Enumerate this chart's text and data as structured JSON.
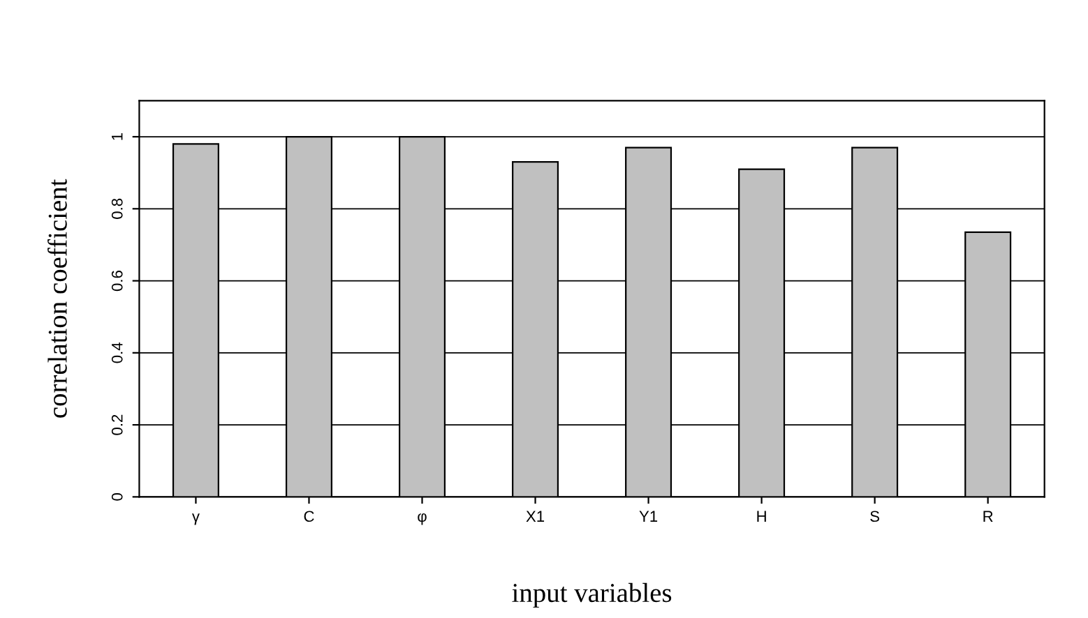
{
  "chart_data": {
    "type": "bar",
    "xlabel": "input variables",
    "ylabel": "correlation coefficient",
    "categories": [
      "γ",
      "C",
      "φ",
      "X1",
      "Y1",
      "H",
      "S",
      "R"
    ],
    "values": [
      0.98,
      1.0,
      1.0,
      0.93,
      0.97,
      0.91,
      0.97,
      0.735
    ],
    "color": "#c0c0c0",
    "ylim": [
      0,
      1.1
    ],
    "yticks": [
      0,
      0.2,
      0.4,
      0.6,
      0.8,
      1
    ],
    "grid": "y"
  }
}
